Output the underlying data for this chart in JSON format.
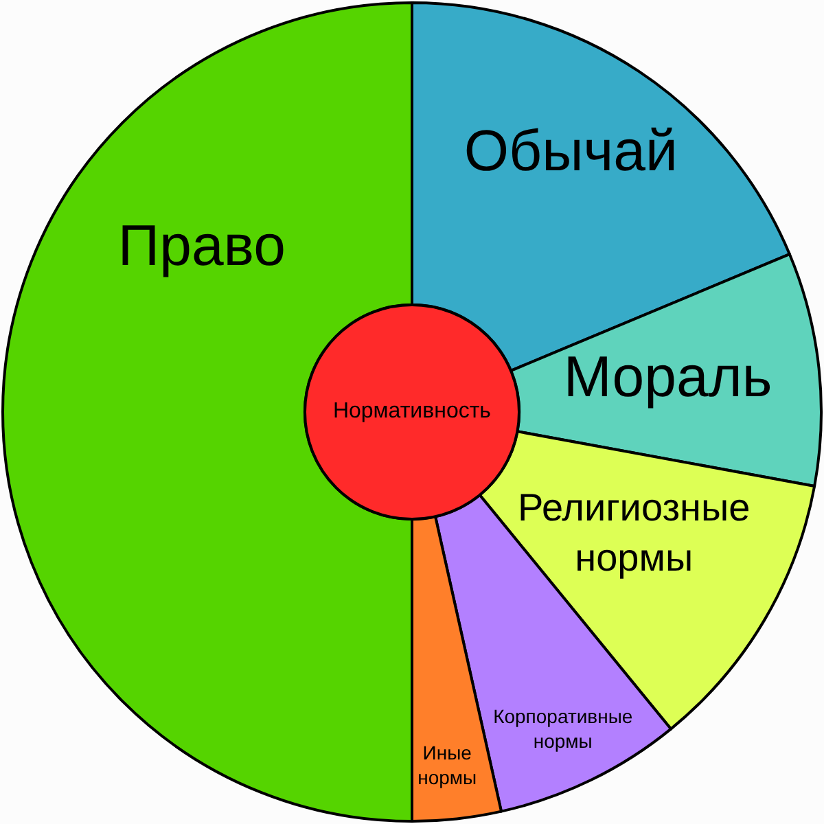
{
  "chart_data": {
    "type": "donut",
    "categories": [
      "Обычай",
      "Мораль",
      "Религиозные нормы",
      "Корпоративные нормы",
      "Иные нормы",
      "Право"
    ],
    "values": [
      18.7,
      9.2,
      11.2,
      7.4,
      3.5,
      50
    ],
    "colors": [
      "#37abc8",
      "#5fd3bc",
      "#ddff55",
      "#b380ff",
      "#ff7f2a",
      "#55d400"
    ],
    "annotations": [
      "Нормативность"
    ]
  }
}
